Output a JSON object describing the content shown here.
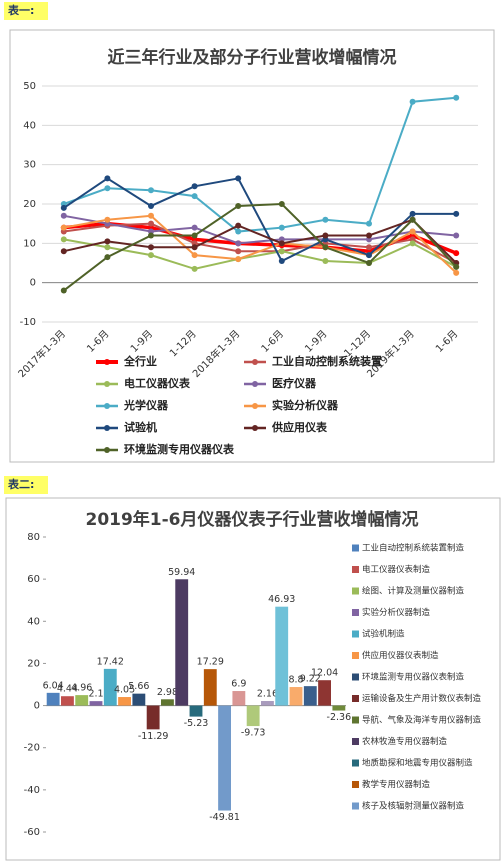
{
  "chart_data": [
    {
      "type": "line",
      "caption": "表一:",
      "title": "近三年行业及部分子行业营收增幅情况",
      "categories": [
        "2017年1-3月",
        "1-6月",
        "1-9月",
        "1-12月",
        "2018年1-3月",
        "1-6月",
        "1-9月",
        "1-12月",
        "2019年1-3月",
        "1-6月"
      ],
      "ylim": [
        -10,
        50
      ],
      "yticks": [
        -10,
        0,
        10,
        20,
        30,
        40,
        50
      ],
      "grid": true,
      "series": [
        {
          "name": "全行业",
          "color": "#ff0000",
          "values": [
            14,
            15,
            14,
            11,
            10,
            9.5,
            9,
            8,
            12,
            7.5
          ]
        },
        {
          "name": "工业自动控制系统装置",
          "color": "#c0504d",
          "values": [
            13,
            14.5,
            15,
            10,
            8,
            8,
            10,
            9,
            11,
            5
          ]
        },
        {
          "name": "电工仪器仪表",
          "color": "#9bbb59",
          "values": [
            11,
            9,
            7,
            3.5,
            6,
            8,
            5.5,
            5,
            10,
            4
          ]
        },
        {
          "name": "医疗仪器",
          "color": "#8064a2",
          "values": [
            17,
            15,
            13,
            14,
            10,
            11,
            11,
            11,
            13,
            12
          ]
        },
        {
          "name": "光学仪器",
          "color": "#4bacc6",
          "values": [
            20,
            24,
            23.5,
            22,
            13,
            14,
            16,
            15,
            46,
            47
          ]
        },
        {
          "name": "实验分析仪器",
          "color": "#f79646",
          "values": [
            14,
            16,
            17,
            7,
            6,
            10,
            9,
            7,
            13,
            2.5
          ]
        },
        {
          "name": "试验机",
          "color": "#1f497d",
          "values": [
            19,
            26.5,
            19.5,
            24.5,
            26.5,
            5.5,
            11,
            7,
            17.5,
            17.5
          ]
        },
        {
          "name": "供应用仪表",
          "color": "#632523",
          "values": [
            8,
            10.5,
            9,
            9,
            14.5,
            10,
            12,
            12,
            16,
            5
          ]
        },
        {
          "name": "环境监测专用仪器仪表",
          "color": "#4f6228",
          "values": [
            -2,
            6.5,
            12,
            12,
            19.5,
            20,
            9,
            5,
            16,
            4
          ]
        }
      ]
    },
    {
      "type": "bar",
      "caption": "表二:",
      "title": "2019年1-6月仪器仪表子行业营收增幅情况",
      "categories": [
        "工业自动控制系统装置制造",
        "电工仪器仪表制造",
        "绘图、计算及测量仪器制造",
        "实验分析仪器制造",
        "试验机制造",
        "供应用仪器仪表制造",
        "环境监测专用仪器仪表制造",
        "运输设备及生产用计数仪表制造",
        "导航、气象及海洋专用仪器制造",
        "农林牧渔专用仪器制造",
        "地质勘探和地震专用仪器制造",
        "教学专用仪器制造",
        "核子及核辐射测量仪器制造",
        null,
        null,
        null,
        null,
        null,
        null,
        null,
        null
      ],
      "values": [
        6.04,
        4.44,
        4.96,
        2.1,
        17.42,
        4.05,
        5.66,
        -11.29,
        2.98,
        59.94,
        -5.23,
        17.29,
        -49.81,
        6.9,
        -9.73,
        2.16,
        46.93,
        8.8,
        9.22,
        12.04,
        -2.36
      ],
      "colors": [
        "#4f81bd",
        "#c0504d",
        "#9bbb59",
        "#8064a2",
        "#4bacc6",
        "#f79646",
        "#2c4d75",
        "#772c2a",
        "#5f7530",
        "#4d3b62",
        "#276a7c",
        "#b65708",
        "#729aca",
        "#d99694",
        "#afc97a",
        "#a99bbd",
        "#6fc1d8",
        "#f9ab6b",
        "#3a5f8c",
        "#8e3532",
        "#6f8a3a"
      ],
      "ylim": [
        -60,
        80
      ],
      "yticks": [
        -60,
        -40,
        -20,
        0,
        20,
        40,
        60,
        80
      ],
      "grid": false
    }
  ]
}
